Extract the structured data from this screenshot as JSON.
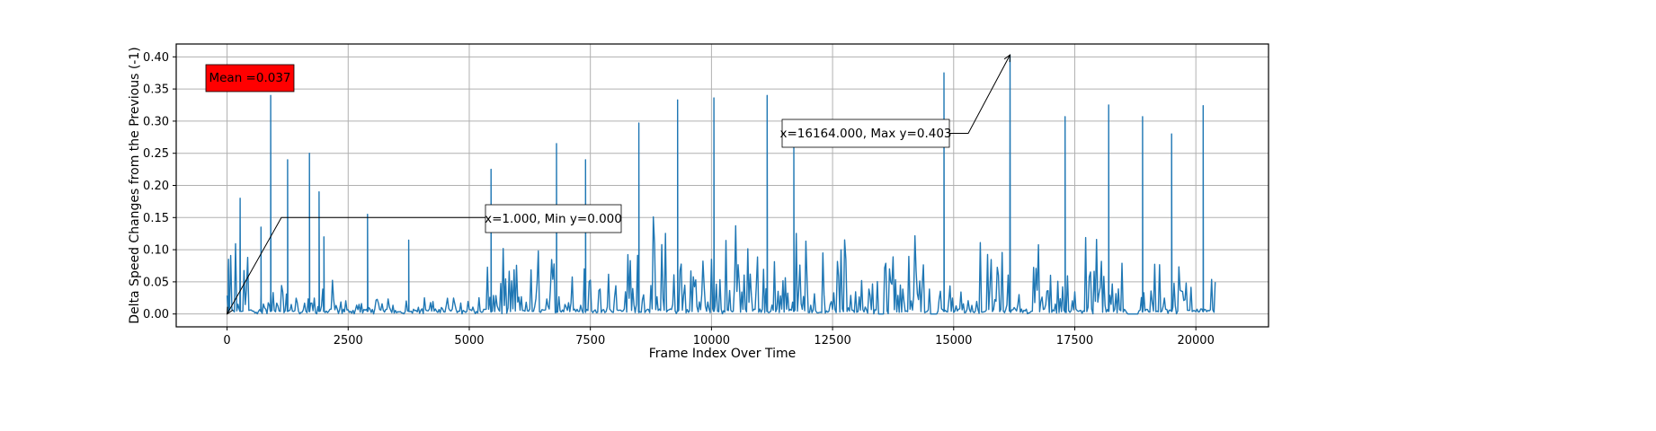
{
  "chart_data": {
    "type": "line",
    "title": "",
    "xlabel": "Frame Index Over Time",
    "ylabel": "Delta Speed Changes from the Previous (-1)",
    "xlim": [
      -1050,
      21500
    ],
    "ylim": [
      -0.02,
      0.42
    ],
    "grid": true,
    "xticks": [
      0,
      2500,
      5000,
      7500,
      10000,
      12500,
      15000,
      17500,
      20000
    ],
    "xtick_labels": [
      "0",
      "2500",
      "5000",
      "7500",
      "10000",
      "12500",
      "15000",
      "17500",
      "20000"
    ],
    "yticks": [
      0.0,
      0.05,
      0.1,
      0.15,
      0.2,
      0.25,
      0.3,
      0.35,
      0.4
    ],
    "ytick_labels": [
      "0.00",
      "0.05",
      "0.10",
      "0.15",
      "0.20",
      "0.25",
      "0.30",
      "0.35",
      "0.40"
    ],
    "series": [
      {
        "color": "#1f77b4",
        "x_range": [
          0,
          20400
        ],
        "peaks": [
          [
            30,
            0.085
          ],
          [
            270,
            0.18
          ],
          [
            700,
            0.135
          ],
          [
            900,
            0.34
          ],
          [
            1250,
            0.24
          ],
          [
            1700,
            0.25
          ],
          [
            1900,
            0.19
          ],
          [
            2000,
            0.12
          ],
          [
            2900,
            0.155
          ],
          [
            3750,
            0.115
          ],
          [
            5450,
            0.225
          ],
          [
            6800,
            0.265
          ],
          [
            7400,
            0.24
          ],
          [
            8500,
            0.297
          ],
          [
            9300,
            0.333
          ],
          [
            10050,
            0.336
          ],
          [
            11150,
            0.34
          ],
          [
            11700,
            0.26
          ],
          [
            14800,
            0.375
          ],
          [
            16164,
            0.403
          ],
          [
            17300,
            0.307
          ],
          [
            18200,
            0.325
          ],
          [
            18900,
            0.307
          ],
          [
            19500,
            0.28
          ],
          [
            20150,
            0.324
          ]
        ],
        "zero_gaps": [
          [
            13450,
            13560
          ],
          [
            14520,
            14660
          ],
          [
            18600,
            18800
          ]
        ]
      }
    ],
    "annotations": [
      {
        "text": "Mean =0.037",
        "box_color": "#ff0000"
      },
      {
        "text": "x=1.000, Min y=0.000",
        "point": [
          1,
          0.0
        ],
        "text_anchor": [
          5400,
          0.15
        ]
      },
      {
        "text": "x=16164.000, Max y=0.403",
        "point": [
          16164,
          0.403
        ],
        "text_anchor": [
          15300,
          0.283
        ]
      }
    ]
  }
}
